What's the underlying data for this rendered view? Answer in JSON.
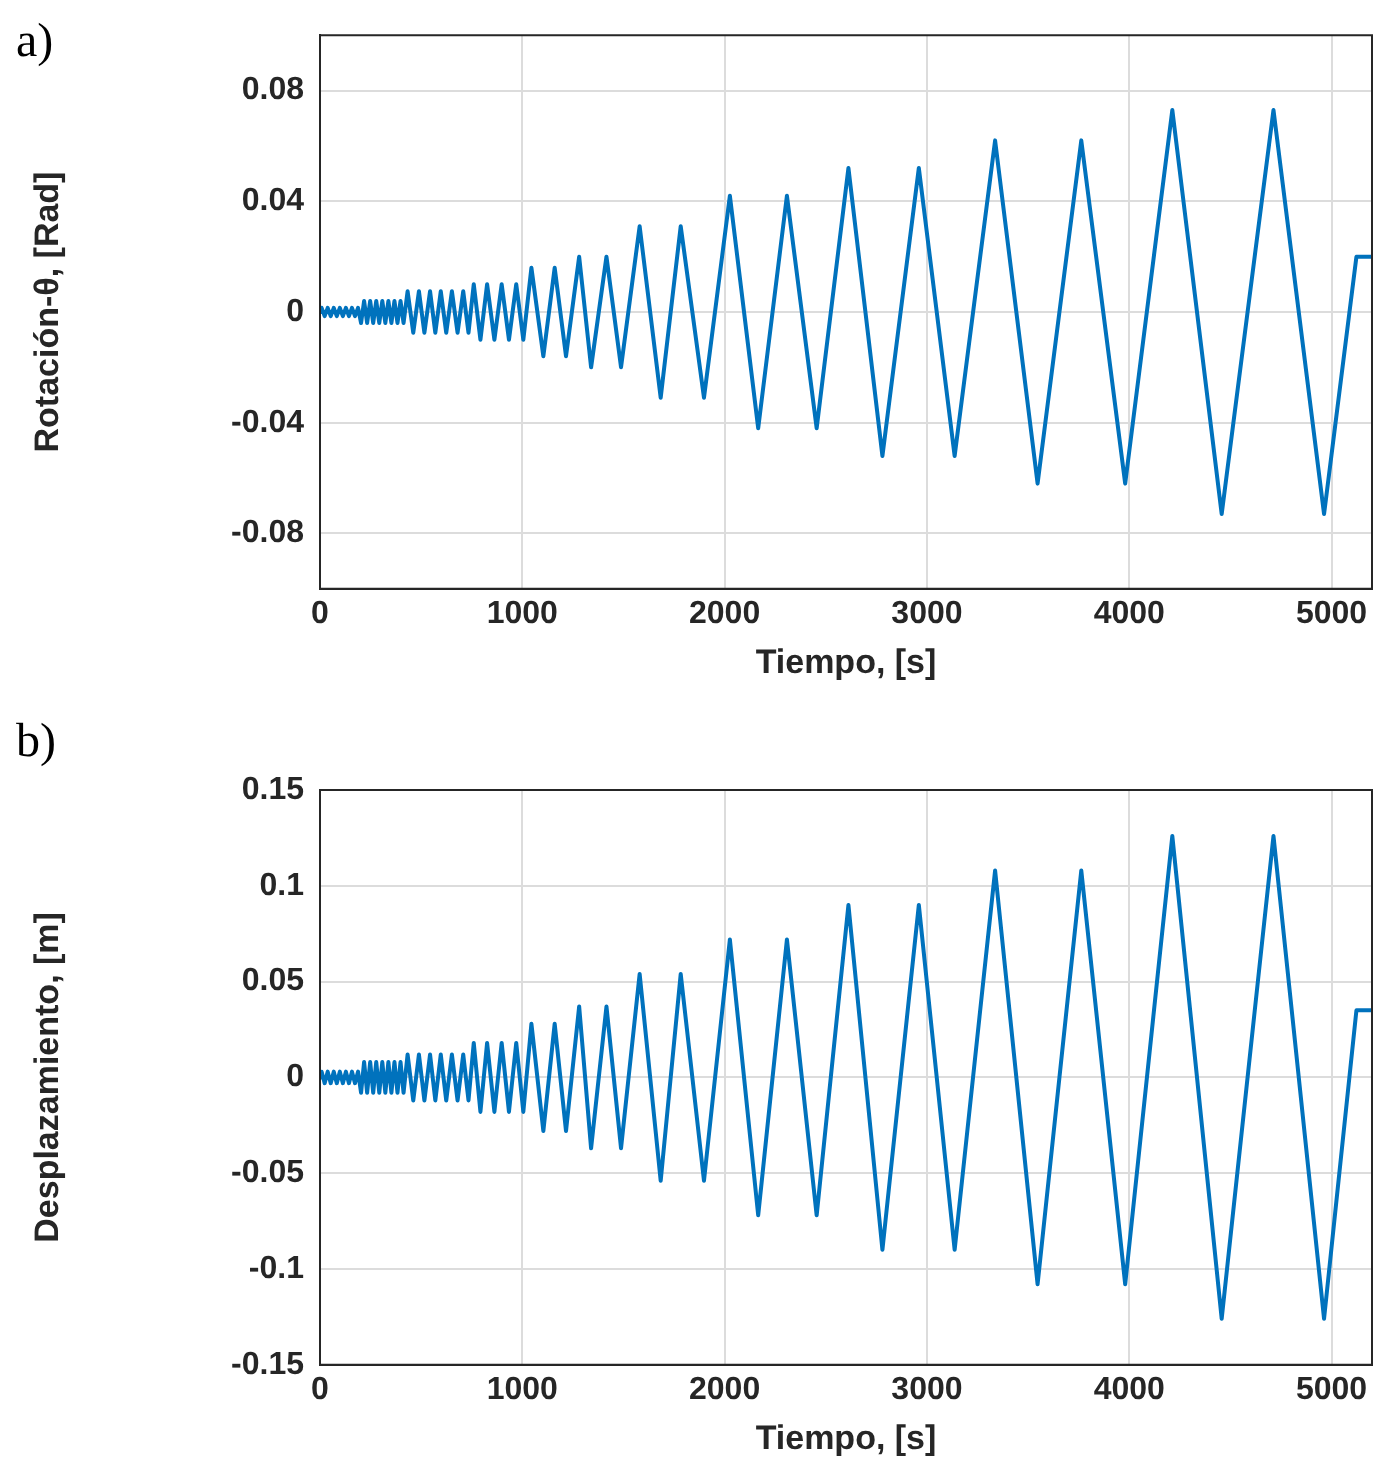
{
  "chart_data": [
    {
      "type": "line",
      "annotations": [
        "a)"
      ],
      "xlabel": "Tiempo, [s]",
      "ylabel": "Rotación-θ, [Rad]",
      "xlim": [
        0,
        5200
      ],
      "xticks": [
        0,
        1000,
        2000,
        3000,
        4000,
        5000
      ],
      "ylim": [
        -0.1,
        0.1
      ],
      "yticks": [
        -0.08,
        -0.04,
        0,
        0.04,
        0.08
      ],
      "grid": true,
      "marker": "none",
      "series": [
        {
          "color": "#0072bd",
          "x": [
            0,
            8,
            23,
            38,
            53,
            68,
            83,
            98,
            113,
            128,
            143,
            158,
            173,
            188,
            203,
            218,
            233,
            248,
            263,
            278,
            293,
            308,
            323,
            338,
            353,
            368,
            383,
            398,
            413,
            433,
            461,
            489,
            516,
            544,
            570,
            597,
            624,
            652,
            680,
            708,
            734,
            760,
            793,
            826,
            862,
            898,
            934,
            970,
            1005,
            1045,
            1104,
            1160,
            1216,
            1281,
            1340,
            1416,
            1488,
            1580,
            1684,
            1783,
            1898,
            2026,
            2166,
            2308,
            2455,
            2612,
            2780,
            2960,
            3137,
            3337,
            3547,
            3763,
            3980,
            4213,
            4457,
            4713,
            4963,
            5123,
            5200
          ],
          "values": [
            0,
            0.0015,
            -0.0015,
            0.0015,
            -0.0015,
            0.0015,
            -0.0015,
            0.0015,
            -0.0015,
            0.0015,
            -0.0015,
            0.0015,
            -0.0015,
            0.0015,
            -0.004,
            0.004,
            -0.004,
            0.004,
            -0.004,
            0.004,
            -0.004,
            0.004,
            -0.004,
            0.004,
            -0.004,
            0.004,
            -0.004,
            0.004,
            -0.004,
            0.0075,
            -0.0075,
            0.0075,
            -0.0075,
            0.0075,
            -0.0075,
            0.0075,
            -0.0075,
            0.0075,
            -0.0075,
            0.0075,
            -0.0075,
            0.01,
            -0.01,
            0.01,
            -0.01,
            0.01,
            -0.01,
            0.01,
            -0.01,
            0.016,
            -0.016,
            0.016,
            -0.016,
            0.02,
            -0.02,
            0.02,
            -0.02,
            0.031,
            -0.031,
            0.031,
            -0.031,
            0.042,
            -0.042,
            0.042,
            -0.042,
            0.052,
            -0.052,
            0.052,
            -0.052,
            0.062,
            -0.062,
            0.062,
            -0.062,
            0.073,
            -0.073,
            0.073,
            -0.073,
            0.02,
            0.02
          ]
        }
      ]
    },
    {
      "type": "line",
      "annotations": [
        "b)"
      ],
      "xlabel": "Tiempo, [s]",
      "ylabel": "Desplazamiento, [m]",
      "xlim": [
        0,
        5200
      ],
      "xticks": [
        0,
        1000,
        2000,
        3000,
        4000,
        5000
      ],
      "ylim": [
        -0.15,
        0.15
      ],
      "yticks": [
        -0.15,
        -0.1,
        -0.05,
        0,
        0.05,
        0.1,
        0.15
      ],
      "grid": true,
      "marker": "none",
      "series": [
        {
          "color": "#0072bd",
          "x": [
            0,
            8,
            23,
            38,
            53,
            68,
            83,
            98,
            113,
            128,
            143,
            158,
            173,
            188,
            203,
            218,
            233,
            248,
            263,
            278,
            293,
            308,
            323,
            338,
            353,
            368,
            383,
            398,
            413,
            433,
            461,
            489,
            516,
            544,
            570,
            597,
            624,
            652,
            680,
            708,
            734,
            760,
            793,
            826,
            862,
            898,
            934,
            970,
            1005,
            1045,
            1104,
            1160,
            1216,
            1281,
            1340,
            1416,
            1488,
            1580,
            1684,
            1783,
            1898,
            2026,
            2166,
            2308,
            2455,
            2612,
            2780,
            2960,
            3137,
            3337,
            3547,
            3763,
            3980,
            4213,
            4457,
            4713,
            4963,
            5123,
            5200
          ],
          "values": [
            0,
            0.003,
            -0.003,
            0.003,
            -0.003,
            0.003,
            -0.003,
            0.003,
            -0.003,
            0.003,
            -0.003,
            0.003,
            -0.003,
            0.003,
            -0.008,
            0.008,
            -0.008,
            0.008,
            -0.008,
            0.008,
            -0.008,
            0.008,
            -0.008,
            0.008,
            -0.008,
            0.008,
            -0.008,
            0.008,
            -0.008,
            0.012,
            -0.012,
            0.012,
            -0.012,
            0.012,
            -0.012,
            0.012,
            -0.012,
            0.012,
            -0.012,
            0.012,
            -0.012,
            0.018,
            -0.018,
            0.018,
            -0.018,
            0.018,
            -0.018,
            0.018,
            -0.018,
            0.028,
            -0.028,
            0.028,
            -0.028,
            0.037,
            -0.037,
            0.037,
            -0.037,
            0.054,
            -0.054,
            0.054,
            -0.054,
            0.072,
            -0.072,
            0.072,
            -0.072,
            0.09,
            -0.09,
            0.09,
            -0.09,
            0.108,
            -0.108,
            0.108,
            -0.108,
            0.126,
            -0.126,
            0.126,
            -0.126,
            0.035,
            0.035
          ]
        }
      ]
    }
  ]
}
